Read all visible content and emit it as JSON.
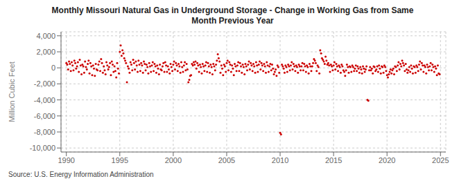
{
  "chart_data": {
    "type": "scatter",
    "title": "Monthly Missouri Natural Gas in Underground Storage - Change in Working Gas from Same\nMonth Previous Year",
    "y_label": "Million Cubic Feet",
    "source": "Source: U.S. Energy Information Administration",
    "color": "#cc0000",
    "grid": true,
    "xlim": [
      1989.5,
      2025.5
    ],
    "xticks": [
      1990,
      1995,
      2000,
      2005,
      2010,
      2015,
      2020,
      2025
    ],
    "ylim": [
      -10500,
      4500
    ],
    "yticks": [
      {
        "value": -10000,
        "label": "-10,000"
      },
      {
        "value": -8000,
        "label": "-8,000"
      },
      {
        "value": -6000,
        "label": "-6,000"
      },
      {
        "value": -4000,
        "label": "-4,000"
      },
      {
        "value": -2000,
        "label": "-2,000"
      },
      0,
      {
        "value": 2000,
        "label": "2,000"
      },
      {
        "value": 4000,
        "label": "4,000"
      }
    ],
    "x": [
      1990.0,
      1990.083,
      1990.167,
      1990.25,
      1990.333,
      1990.417,
      1990.5,
      1990.583,
      1990.667,
      1990.75,
      1990.833,
      1990.917,
      1991.0,
      1991.083,
      1991.167,
      1991.25,
      1991.333,
      1991.417,
      1991.5,
      1991.583,
      1991.667,
      1991.75,
      1991.833,
      1991.917,
      1992.0,
      1992.083,
      1992.167,
      1992.25,
      1992.333,
      1992.417,
      1992.5,
      1992.583,
      1992.667,
      1992.75,
      1992.833,
      1992.917,
      1993.0,
      1993.083,
      1993.167,
      1993.25,
      1993.333,
      1993.417,
      1993.5,
      1993.583,
      1993.667,
      1993.75,
      1993.833,
      1993.917,
      1994.0,
      1994.083,
      1994.167,
      1994.25,
      1994.333,
      1994.417,
      1994.5,
      1994.583,
      1994.667,
      1994.75,
      1994.833,
      1994.917,
      1995.0,
      1995.083,
      1995.167,
      1995.25,
      1995.333,
      1995.417,
      1995.5,
      1995.583,
      1995.667,
      1995.75,
      1995.833,
      1995.917,
      1996.0,
      1996.083,
      1996.167,
      1996.25,
      1996.333,
      1996.417,
      1996.5,
      1996.583,
      1996.667,
      1996.75,
      1996.833,
      1996.917,
      1997.0,
      1997.083,
      1997.167,
      1997.25,
      1997.333,
      1997.417,
      1997.5,
      1997.583,
      1997.667,
      1997.75,
      1997.833,
      1997.917,
      1998.0,
      1998.083,
      1998.167,
      1998.25,
      1998.333,
      1998.417,
      1998.5,
      1998.583,
      1998.667,
      1998.75,
      1998.833,
      1998.917,
      1999.0,
      1999.083,
      1999.167,
      1999.25,
      1999.333,
      1999.417,
      1999.5,
      1999.583,
      1999.667,
      1999.75,
      1999.833,
      1999.917,
      2000.0,
      2000.083,
      2000.167,
      2000.25,
      2000.333,
      2000.417,
      2000.5,
      2000.583,
      2000.667,
      2000.75,
      2000.833,
      2000.917,
      2001.0,
      2001.083,
      2001.167,
      2001.25,
      2001.333,
      2001.417,
      2001.5,
      2001.583,
      2001.667,
      2001.75,
      2001.833,
      2001.917,
      2002.0,
      2002.083,
      2002.167,
      2002.25,
      2002.333,
      2002.417,
      2002.5,
      2002.583,
      2002.667,
      2002.75,
      2002.833,
      2002.917,
      2003.0,
      2003.083,
      2003.167,
      2003.25,
      2003.333,
      2003.417,
      2003.5,
      2003.583,
      2003.667,
      2003.75,
      2003.833,
      2003.917,
      2004.0,
      2004.083,
      2004.167,
      2004.25,
      2004.333,
      2004.417,
      2004.5,
      2004.583,
      2004.667,
      2004.75,
      2004.833,
      2004.917,
      2005.0,
      2005.083,
      2005.167,
      2005.25,
      2005.333,
      2005.417,
      2005.5,
      2005.583,
      2005.667,
      2005.75,
      2005.833,
      2005.917,
      2006.0,
      2006.083,
      2006.167,
      2006.25,
      2006.333,
      2006.417,
      2006.5,
      2006.583,
      2006.667,
      2006.75,
      2006.833,
      2006.917,
      2007.0,
      2007.083,
      2007.167,
      2007.25,
      2007.333,
      2007.417,
      2007.5,
      2007.583,
      2007.667,
      2007.75,
      2007.833,
      2007.917,
      2008.0,
      2008.083,
      2008.167,
      2008.25,
      2008.333,
      2008.417,
      2008.5,
      2008.583,
      2008.667,
      2008.75,
      2008.833,
      2008.917,
      2009.0,
      2009.083,
      2009.167,
      2009.25,
      2009.333,
      2009.417,
      2009.5,
      2009.583,
      2009.667,
      2009.75,
      2009.833,
      2009.917,
      2010.0,
      2010.083,
      2010.167,
      2010.25,
      2010.333,
      2010.417,
      2010.5,
      2010.583,
      2010.667,
      2010.75,
      2010.833,
      2010.917,
      2011.0,
      2011.083,
      2011.167,
      2011.25,
      2011.333,
      2011.417,
      2011.5,
      2011.583,
      2011.667,
      2011.75,
      2011.833,
      2011.917,
      2012.0,
      2012.083,
      2012.167,
      2012.25,
      2012.333,
      2012.417,
      2012.5,
      2012.583,
      2012.667,
      2012.75,
      2012.833,
      2012.917,
      2013.0,
      2013.083,
      2013.167,
      2013.25,
      2013.333,
      2013.417,
      2013.5,
      2013.583,
      2013.667,
      2013.75,
      2013.833,
      2013.917,
      2014.0,
      2014.083,
      2014.167,
      2014.25,
      2014.333,
      2014.417,
      2014.5,
      2014.583,
      2014.667,
      2014.75,
      2014.833,
      2014.917,
      2015.0,
      2015.083,
      2015.167,
      2015.25,
      2015.333,
      2015.417,
      2015.5,
      2015.583,
      2015.667,
      2015.75,
      2015.833,
      2015.917,
      2016.0,
      2016.083,
      2016.167,
      2016.25,
      2016.333,
      2016.417,
      2016.5,
      2016.583,
      2016.667,
      2016.75,
      2016.833,
      2016.917,
      2017.0,
      2017.083,
      2017.167,
      2017.25,
      2017.333,
      2017.417,
      2017.5,
      2017.583,
      2017.667,
      2017.75,
      2017.833,
      2017.917,
      2018.0,
      2018.083,
      2018.167,
      2018.25,
      2018.333,
      2018.417,
      2018.5,
      2018.583,
      2018.667,
      2018.75,
      2018.833,
      2018.917,
      2019.0,
      2019.083,
      2019.167,
      2019.25,
      2019.333,
      2019.417,
      2019.5,
      2019.583,
      2019.667,
      2019.75,
      2019.833,
      2019.917,
      2020.0,
      2020.083,
      2020.167,
      2020.25,
      2020.333,
      2020.417,
      2020.5,
      2020.583,
      2020.667,
      2020.75,
      2020.833,
      2020.917,
      2021.0,
      2021.083,
      2021.167,
      2021.25,
      2021.333,
      2021.417,
      2021.5,
      2021.583,
      2021.667,
      2021.75,
      2021.833,
      2021.917,
      2022.0,
      2022.083,
      2022.167,
      2022.25,
      2022.333,
      2022.417,
      2022.5,
      2022.583,
      2022.667,
      2022.75,
      2022.833,
      2022.917,
      2023.0,
      2023.083,
      2023.167,
      2023.25,
      2023.333,
      2023.417,
      2023.5,
      2023.583,
      2023.667,
      2023.75,
      2023.833,
      2023.917,
      2024.0,
      2024.083,
      2024.167,
      2024.25,
      2024.333,
      2024.417,
      2024.5,
      2024.583,
      2024.667,
      2024.75,
      2024.833,
      2024.917
    ],
    "values": [
      600,
      400,
      -200,
      800,
      500,
      -400,
      700,
      300,
      -300,
      900,
      600,
      -100,
      200,
      700,
      -500,
      1000,
      300,
      -800,
      400,
      200,
      -600,
      800,
      100,
      -200,
      500,
      900,
      -700,
      600,
      200,
      -900,
      300,
      -100,
      -1000,
      500,
      -200,
      -300,
      400,
      800,
      -400,
      1100,
      600,
      -600,
      200,
      -300,
      -800,
      700,
      300,
      -200,
      100,
      600,
      -900,
      800,
      400,
      -500,
      200,
      -400,
      -1200,
      600,
      -100,
      -700,
      2000,
      2800,
      1500,
      2200,
      1800,
      1200,
      900,
      600,
      -1800,
      200,
      -100,
      -600,
      700,
      400,
      -300,
      1000,
      600,
      -200,
      800,
      300,
      -500,
      900,
      400,
      -400,
      600,
      300,
      -600,
      800,
      500,
      -300,
      400,
      100,
      -700,
      600,
      200,
      -500,
      300,
      700,
      -400,
      500,
      200,
      -600,
      300,
      -100,
      -800,
      400,
      -200,
      -300,
      200,
      600,
      -500,
      700,
      300,
      -500,
      200,
      -200,
      -700,
      500,
      100,
      -400,
      400,
      800,
      -200,
      600,
      300,
      -400,
      500,
      200,
      -600,
      700,
      100,
      -500,
      300,
      700,
      -300,
      500,
      -200,
      -1800,
      -1500,
      -1000,
      -900,
      500,
      300,
      700,
      400,
      800,
      -100,
      600,
      300,
      -500,
      400,
      100,
      -700,
      500,
      200,
      -400,
      300,
      700,
      -500,
      600,
      200,
      -600,
      400,
      100,
      -800,
      500,
      200,
      -300,
      400,
      900,
      1700,
      1200,
      800,
      -600,
      300,
      -100,
      -900,
      400,
      200,
      -500,
      600,
      900,
      -300,
      700,
      400,
      -500,
      300,
      -100,
      -900,
      500,
      200,
      -400,
      300,
      700,
      -400,
      600,
      200,
      -600,
      400,
      100,
      -800,
      500,
      200,
      -300,
      400,
      800,
      -200,
      600,
      300,
      -400,
      500,
      200,
      -600,
      700,
      300,
      -500,
      400,
      800,
      -200,
      600,
      300,
      -400,
      500,
      200,
      -600,
      700,
      300,
      -500,
      200,
      500,
      -300,
      400,
      -100,
      -800,
      -500,
      -200,
      -1000,
      300,
      100,
      -600,
      -8100,
      -8300,
      400,
      200,
      -100,
      -600,
      300,
      100,
      -500,
      400,
      200,
      -300,
      300,
      700,
      -200,
      500,
      200,
      -400,
      300,
      100,
      -600,
      400,
      200,
      -300,
      200,
      600,
      -300,
      500,
      200,
      -500,
      300,
      100,
      -700,
      500,
      200,
      -400,
      200,
      600,
      1100,
      900,
      600,
      -400,
      300,
      100,
      -700,
      2200,
      1800,
      1200,
      1000,
      800,
      500,
      1400,
      900,
      400,
      600,
      300,
      -500,
      400,
      200,
      -300,
      300,
      700,
      -200,
      500,
      200,
      -400,
      300,
      100,
      -600,
      400,
      200,
      -300,
      -500,
      -1000,
      -300,
      400,
      100,
      -600,
      200,
      100,
      -500,
      300,
      100,
      -400,
      -100,
      300,
      -400,
      200,
      -100,
      -600,
      100,
      -200,
      -700,
      200,
      -100,
      -500,
      -200,
      200,
      -4000,
      -4100,
      -300,
      100,
      -300,
      -100,
      -700,
      200,
      100,
      -400,
      -200,
      200,
      -500,
      300,
      -100,
      -700,
      200,
      100,
      -600,
      300,
      100,
      -400,
      -900,
      -1200,
      -800,
      -500,
      -200,
      -700,
      -300,
      -100,
      -800,
      200,
      100,
      -400,
      300,
      700,
      -200,
      500,
      200,
      900,
      600,
      300,
      -400,
      500,
      -200,
      -600,
      -300,
      100,
      -500,
      300,
      -100,
      -700,
      200,
      100,
      -600,
      300,
      100,
      -400,
      400,
      800,
      -200,
      600,
      300,
      -500,
      300,
      100,
      -700,
      400,
      100,
      -300,
      200,
      600,
      -300,
      400,
      100,
      -500,
      200,
      -100,
      -900,
      300,
      -700,
      -800
    ]
  }
}
